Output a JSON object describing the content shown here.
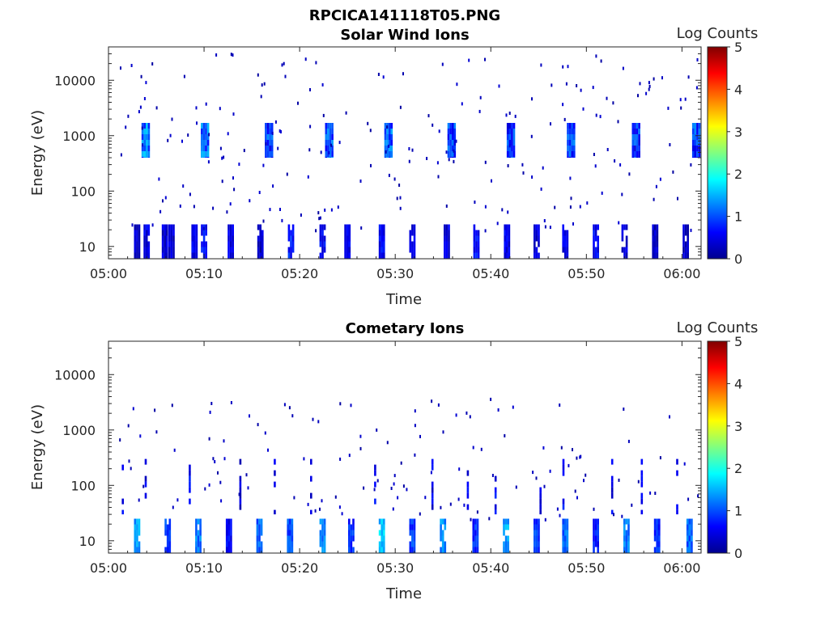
{
  "figure_title": "RPCICA141118T05.PNG",
  "colorscale": [
    "#00008f",
    "#0000ff",
    "#0080ff",
    "#00ffff",
    "#80ff80",
    "#ffff00",
    "#ff8000",
    "#ff0000",
    "#800000"
  ],
  "chart_data": [
    {
      "type": "heatmap",
      "title": "Solar Wind Ions",
      "xlabel": "Time",
      "ylabel": "Energy (eV)",
      "x_ticks": [
        "05:00",
        "05:10",
        "05:20",
        "05:30",
        "05:40",
        "05:50",
        "06:00"
      ],
      "x_tick_minutes": [
        0,
        10,
        20,
        30,
        40,
        50,
        60
      ],
      "xlim_minutes": [
        0,
        62
      ],
      "y_scale": "log",
      "ylim": [
        6,
        40000
      ],
      "y_ticks": [
        "10",
        "100",
        "1000",
        "10000"
      ],
      "y_tick_values": [
        10,
        100,
        1000,
        10000
      ],
      "colorbar": {
        "label": "Log Counts",
        "range": [
          0,
          5
        ],
        "ticks": [
          "0",
          "1",
          "2",
          "3",
          "4",
          "5"
        ]
      },
      "features": {
        "low_energy_columns": {
          "energy_range_eV": [
            6,
            25
          ],
          "minutes": [
            3,
            4,
            5.9,
            6.6,
            9,
            10,
            12.8,
            15.9,
            19.1,
            22.4,
            25,
            28.6,
            31.8,
            35.4,
            38.5,
            41.7,
            44.8,
            47.8,
            51,
            54,
            57.2,
            60.4
          ],
          "log_counts": [
            0.3,
            0.5,
            0.4,
            0.4,
            0.5,
            0.6,
            0.5,
            0.3,
            0.7,
            0.6,
            0.5,
            0.6,
            0.5,
            0.4,
            0.6,
            0.5,
            0.4,
            0.5,
            0.6,
            0.4,
            0.3,
            0.3
          ]
        },
        "peak_clusters": {
          "energy_range_eV": [
            400,
            1700
          ],
          "minutes": [
            3.9,
            10.1,
            16.8,
            23.1,
            29.3,
            35.9,
            42.1,
            48.4,
            55.2,
            61.5
          ],
          "log_counts": [
            1.2,
            1.1,
            0.9,
            1.0,
            1.1,
            0.9,
            0.8,
            0.9,
            0.8,
            0.9
          ]
        }
      }
    },
    {
      "type": "heatmap",
      "title": "Cometary Ions",
      "xlabel": "Time",
      "ylabel": "Energy (eV)",
      "x_ticks": [
        "05:00",
        "05:10",
        "05:20",
        "05:30",
        "05:40",
        "05:50",
        "06:00"
      ],
      "x_tick_minutes": [
        0,
        10,
        20,
        30,
        40,
        50,
        60
      ],
      "xlim_minutes": [
        0,
        62
      ],
      "y_scale": "log",
      "ylim": [
        6,
        40000
      ],
      "y_ticks": [
        "10",
        "100",
        "1000",
        "10000"
      ],
      "y_tick_values": [
        10,
        100,
        1000,
        10000
      ],
      "colorbar": {
        "label": "Log Counts",
        "range": [
          0,
          5
        ],
        "ticks": [
          "0",
          "1",
          "2",
          "3",
          "4",
          "5"
        ]
      },
      "features": {
        "low_energy_columns": {
          "energy_range_eV": [
            6,
            25
          ],
          "minutes": [
            3,
            6.2,
            9.4,
            12.6,
            15.8,
            19,
            22.4,
            25.4,
            28.6,
            31.8,
            35,
            38.4,
            41.6,
            44.8,
            47.8,
            51,
            54.2,
            57.4,
            60.8
          ],
          "log_counts": [
            1.4,
            0.9,
            1.2,
            0.6,
            1.1,
            1.0,
            1.3,
            0.8,
            1.6,
            0.9,
            1.3,
            0.8,
            1.4,
            0.9,
            1.1,
            0.7,
            1.2,
            0.8,
            1.1
          ]
        },
        "mid_energy_columns": {
          "energy_range_eV": [
            30,
            300
          ],
          "minutes": [
            1.5,
            3.9,
            8.5,
            13.8,
            17.4,
            21.2,
            27.9,
            33.9,
            37.6,
            40.5,
            45.2,
            47.6,
            52.7,
            55.8,
            59.5
          ],
          "log_counts": [
            0.5,
            0.5,
            0.6,
            0.4,
            0.5,
            0.5,
            0.6,
            0.5,
            0.5,
            0.6,
            0.4,
            0.6,
            0.5,
            0.6,
            0.5
          ]
        }
      }
    }
  ]
}
